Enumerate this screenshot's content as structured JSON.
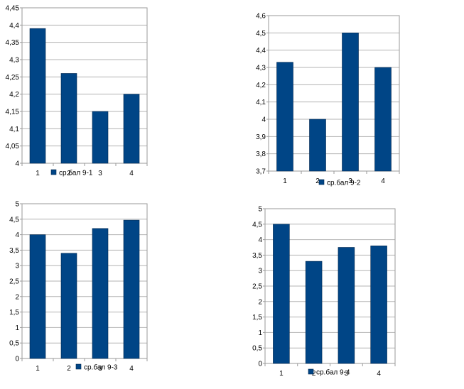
{
  "colors": {
    "bar": "#004586",
    "bar_stroke": "#00264d",
    "axis": "#9a9a9a",
    "grid": "#b3b3b3"
  },
  "chart_data": [
    {
      "type": "bar",
      "categories": [
        "1",
        "2",
        "3",
        "4"
      ],
      "series": [
        {
          "name": "ср.бал 9-1",
          "values": [
            4.39,
            4.26,
            4.15,
            4.2
          ]
        }
      ],
      "ylim": [
        4,
        4.45
      ],
      "yticks": [
        "4",
        "4,05",
        "4,1",
        "4,15",
        "4,2",
        "4,25",
        "4,3",
        "4,35",
        "4,4",
        "4,45"
      ],
      "grid": true,
      "legend": "bottom"
    },
    {
      "type": "bar",
      "categories": [
        "1",
        "2",
        "3",
        "4"
      ],
      "series": [
        {
          "name": "ср.бал 9-2",
          "values": [
            4.33,
            4.0,
            4.5,
            4.3
          ]
        }
      ],
      "ylim": [
        3.7,
        4.6
      ],
      "yticks": [
        "3,7",
        "3,8",
        "3,9",
        "4",
        "4,1",
        "4,2",
        "4,3",
        "4,4",
        "4,5",
        "4,6"
      ],
      "grid": true,
      "legend": "bottom"
    },
    {
      "type": "bar",
      "categories": [
        "1",
        "2",
        "3",
        "4"
      ],
      "series": [
        {
          "name": "ср.бал 9-3",
          "values": [
            4.0,
            3.4,
            4.2,
            4.47
          ]
        }
      ],
      "ylim": [
        0,
        5
      ],
      "yticks": [
        "0",
        "0,5",
        "1",
        "1,5",
        "2",
        "2,5",
        "3",
        "3,5",
        "4",
        "4,5",
        "5"
      ],
      "grid": true,
      "legend": "bottom"
    },
    {
      "type": "bar",
      "categories": [
        "1",
        "2",
        "3",
        "4"
      ],
      "series": [
        {
          "name": "ср.бал 9-4",
          "values": [
            4.5,
            3.3,
            3.75,
            3.8
          ]
        }
      ],
      "ylim": [
        0,
        5
      ],
      "yticks": [
        "0",
        "0,5",
        "1",
        "1,5",
        "2",
        "2,5",
        "3",
        "3,5",
        "4",
        "4,5",
        "5"
      ],
      "grid": true,
      "legend": "bottom"
    }
  ]
}
